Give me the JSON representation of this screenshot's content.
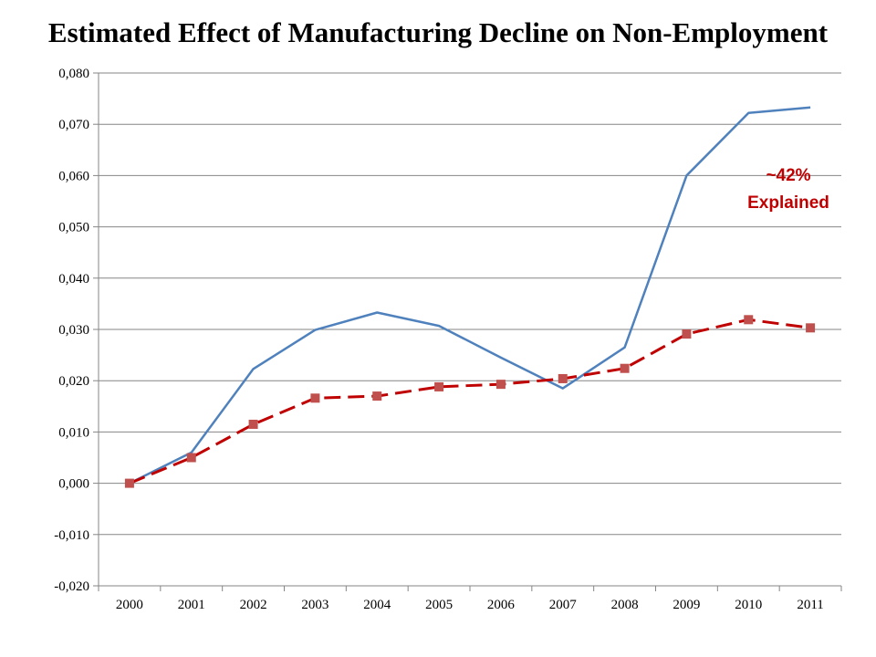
{
  "chart_data": {
    "type": "line",
    "title": "Estimated Effect of Manufacturing Decline on Non-Employment",
    "xlabel": "",
    "ylabel": "",
    "categories": [
      "2000",
      "2001",
      "2002",
      "2003",
      "2004",
      "2005",
      "2006",
      "2007",
      "2008",
      "2009",
      "2010",
      "2011"
    ],
    "ylim": [
      -0.02,
      0.08
    ],
    "yticks": [
      "-0,020",
      "-0,010",
      "0,000",
      "0,010",
      "0,020",
      "0,030",
      "0,040",
      "0,050",
      "0,060",
      "0,070",
      "0,080"
    ],
    "grid": true,
    "series": [
      {
        "color": "#4f81bd",
        "style": "solid",
        "values": [
          0.0,
          0.006,
          0.0223,
          0.0299,
          0.0333,
          0.0307,
          0.0245,
          0.0185,
          0.0265,
          0.06,
          0.0722,
          0.0733
        ]
      },
      {
        "color": "#c00000",
        "marker_color": "#c0504d",
        "style": "dashed",
        "marker": "square",
        "values": [
          0.0,
          0.005,
          0.0115,
          0.0166,
          0.017,
          0.0188,
          0.0193,
          0.0204,
          0.0224,
          0.0291,
          0.0319,
          0.0303
        ]
      }
    ],
    "annotation": {
      "lines": [
        "~42%",
        "Explained"
      ],
      "color": "#c00000"
    }
  }
}
